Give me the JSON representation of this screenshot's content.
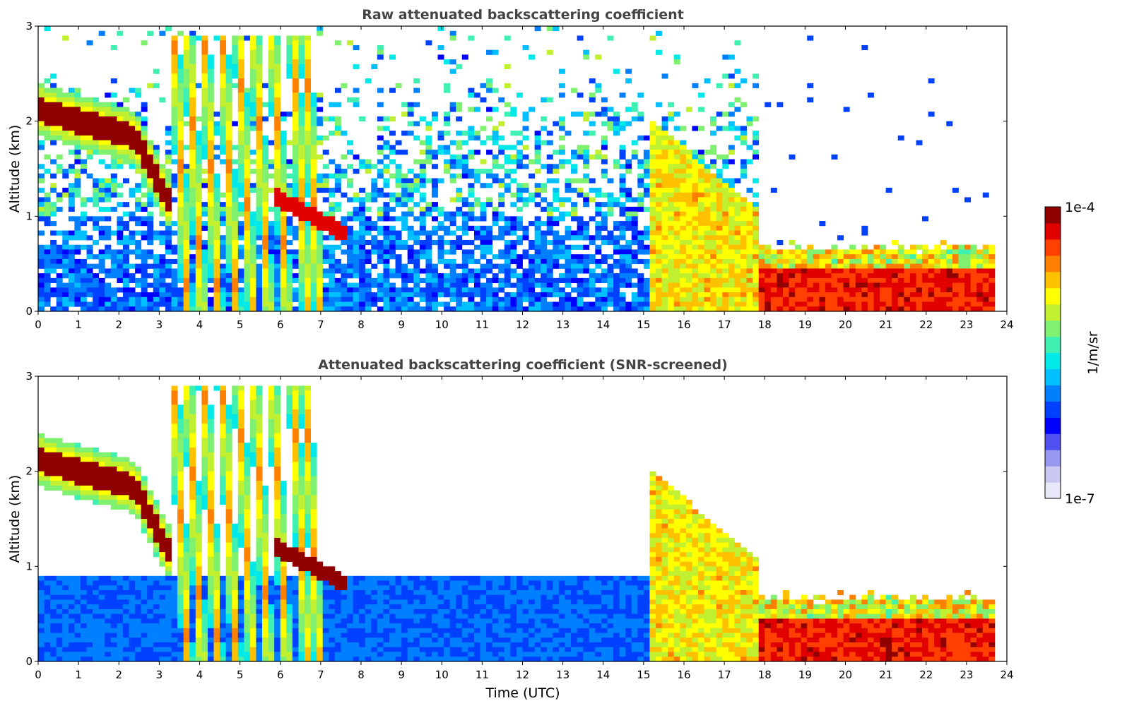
{
  "chart_data": [
    {
      "type": "heatmap",
      "title": "Raw attenuated backscattering coefficient",
      "xlabel": "",
      "ylabel": "Altitude (km)",
      "xlim": [
        0,
        24
      ],
      "ylim": [
        0,
        3
      ],
      "x_ticks": [
        "0",
        "1",
        "2",
        "3",
        "4",
        "5",
        "6",
        "7",
        "8",
        "9",
        "10",
        "11",
        "12",
        "13",
        "14",
        "15",
        "16",
        "17",
        "18",
        "19",
        "20",
        "21",
        "22",
        "23",
        "24"
      ],
      "y_ticks": [
        "0",
        "1",
        "2",
        "3"
      ],
      "features": [
        {
          "name": "elevated aerosol layer",
          "time": [
            0,
            3.2
          ],
          "altitude_km": [
            2.15,
            1.3
          ],
          "level": "high"
        },
        {
          "name": "precipitation streaks",
          "time": [
            3.2,
            6.8
          ],
          "altitude_km": [
            0,
            3.0
          ],
          "level": "medium-high"
        },
        {
          "name": "descending layer",
          "time": [
            6.0,
            7.7
          ],
          "altitude_km": [
            1.2,
            0.8
          ],
          "level": "high"
        },
        {
          "name": "background noise",
          "time": [
            0,
            17.8
          ],
          "altitude_km": [
            0,
            3.0
          ],
          "level": "low"
        },
        {
          "name": "convective boundary / cloud",
          "time": [
            15.2,
            17.8
          ],
          "altitude_km": [
            0,
            2.0
          ],
          "level": "medium-high"
        },
        {
          "name": "boundary layer",
          "time": [
            17.8,
            23.7
          ],
          "altitude_km": [
            0,
            0.7
          ],
          "level": "high"
        }
      ]
    },
    {
      "type": "heatmap",
      "title": "Attenuated backscattering coefficient (SNR-screened)",
      "xlabel": "Time (UTC)",
      "ylabel": "Altitude (km)",
      "xlim": [
        0,
        24
      ],
      "ylim": [
        0,
        3
      ],
      "x_ticks": [
        "0",
        "1",
        "2",
        "3",
        "4",
        "5",
        "6",
        "7",
        "8",
        "9",
        "10",
        "11",
        "12",
        "13",
        "14",
        "15",
        "16",
        "17",
        "18",
        "19",
        "20",
        "21",
        "22",
        "23",
        "24"
      ],
      "y_ticks": [
        "0",
        "1",
        "2",
        "3"
      ],
      "features": [
        {
          "name": "elevated aerosol layer",
          "time": [
            0,
            3.2
          ],
          "altitude_km": [
            2.15,
            1.3
          ],
          "level": "saturated"
        },
        {
          "name": "precipitation streaks",
          "time": [
            3.2,
            6.8
          ],
          "altitude_km": [
            0,
            3.0
          ],
          "level": "medium-high"
        },
        {
          "name": "low-level aerosol",
          "time": [
            0,
            15.2
          ],
          "altitude_km": [
            0,
            0.9
          ],
          "level": "low"
        },
        {
          "name": "convective boundary / cloud",
          "time": [
            15.2,
            17.8
          ],
          "altitude_km": [
            0,
            2.0
          ],
          "level": "medium-high"
        },
        {
          "name": "boundary layer",
          "time": [
            17.8,
            23.7
          ],
          "altitude_km": [
            0,
            0.7
          ],
          "level": "high"
        }
      ]
    }
  ],
  "colorbar": {
    "label": "1/m/sr",
    "max_label": "1e-4",
    "min_label": "1e-7",
    "scale": "log",
    "colors": [
      "#e8e8f8",
      "#c8c8f0",
      "#9898f0",
      "#5050f0",
      "#0000ff",
      "#0040ff",
      "#0080ff",
      "#00c0ff",
      "#00e8e8",
      "#40f0b0",
      "#80f070",
      "#c0f030",
      "#ffff00",
      "#ffc000",
      "#ff8000",
      "#ff4000",
      "#e00000",
      "#900000"
    ]
  }
}
